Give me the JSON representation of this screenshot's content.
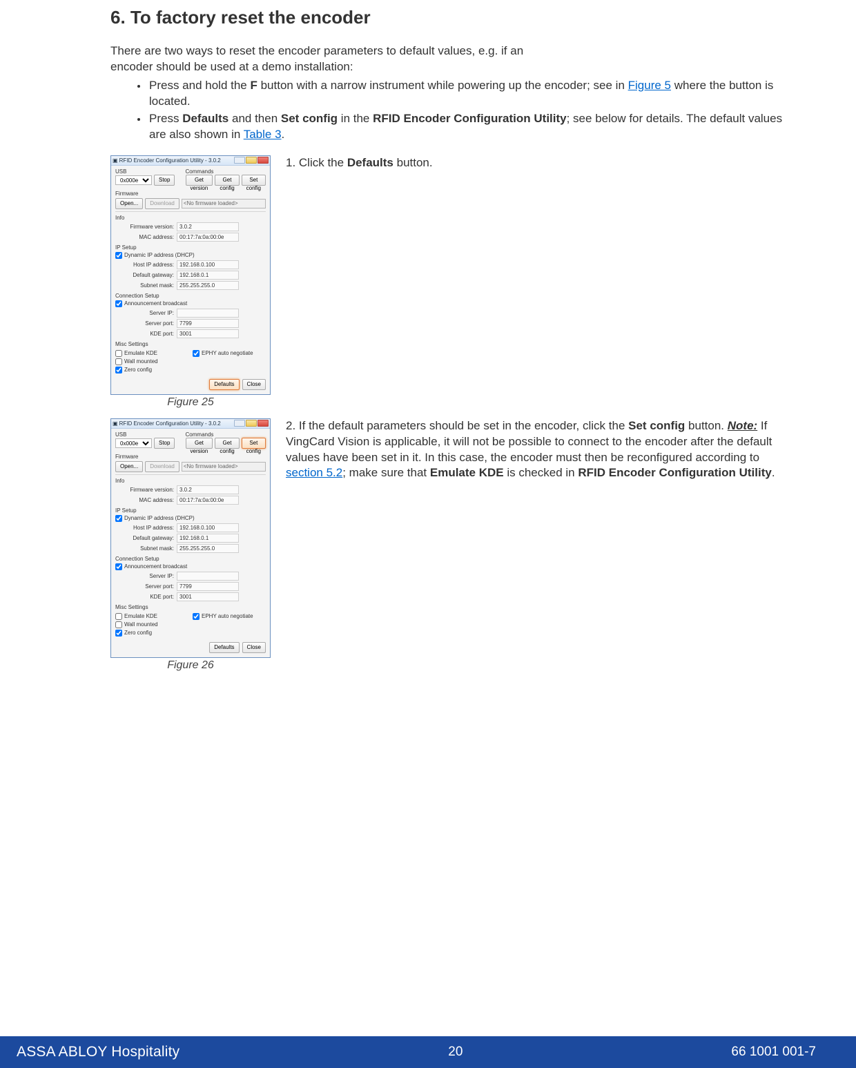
{
  "heading": "6. To factory reset the encoder",
  "intro_line1": "There are two ways to reset the encoder parameters to default values, e.g. if an",
  "intro_line2": "encoder should be used at a demo installation:",
  "bullet1_a": "Press and hold the ",
  "bullet1_b": "F",
  "bullet1_c": " button with a narrow instrument while powering up the encoder; see in ",
  "bullet1_link": "Figure 5",
  "bullet1_d": " where the button is located.",
  "bullet2_a": "Press ",
  "bullet2_b": "Defaults",
  "bullet2_c": " and then ",
  "bullet2_d": "Set config",
  "bullet2_e": " in the ",
  "bullet2_f": "RFID Encoder Configuration Utility",
  "bullet2_g": "; see below for details. The default values are also shown in ",
  "bullet2_link": "Table 3",
  "bullet2_h": ".",
  "step1_a": "1. Click the ",
  "step1_b": "Defaults",
  "step1_c": " button.",
  "step2_a": "2. If the default parameters should be set in the encoder, click the ",
  "step2_b": "Set config",
  "step2_c": " button. ",
  "step2_note": "Note:",
  "step2_d": " If VingCard Vision is applicable, it will not be possible to connect to the encoder after the default values have been set in it. In this case, the encoder must then be reconfigured according to ",
  "step2_link": "section 5.2",
  "step2_e": "; make sure that ",
  "step2_f": "Emulate KDE",
  "step2_g": " is checked in ",
  "step2_h": "RFID Encoder Configuration Utility",
  "step2_i": ".",
  "fig25_caption": "Figure 25",
  "fig26_caption": "Figure 26",
  "win": {
    "title": "RFID Encoder Configuration Utility - 3.0.2",
    "usb_label": "USB",
    "usb_selected": "0x000e",
    "stop_btn": "Stop",
    "commands_label": "Commands",
    "get_version_btn": "Get version",
    "get_config_btn": "Get config",
    "set_config_btn": "Set config",
    "firmware_label": "Firmware",
    "open_btn": "Open...",
    "download_btn": "Download",
    "no_fw": "<No firmware loaded>",
    "info_label": "Info",
    "fw_version_k": "Firmware version:",
    "fw_version_v": "3.0.2",
    "mac_k": "MAC address:",
    "mac_v": "00:17:7a:0a:00:0e",
    "ip_setup_label": "IP Setup",
    "dhcp_chk": "Dynamic IP address (DHCP)",
    "host_ip_k": "Host IP address:",
    "host_ip_v": "192.168.0.100",
    "gateway_k": "Default gateway:",
    "gateway_v": "192.168.0.1",
    "subnet_k": "Subnet mask:",
    "subnet_v": "255.255.255.0",
    "conn_setup_label": "Connection Setup",
    "ann_chk": "Announcement broadcast",
    "server_ip_k": "Server IP:",
    "server_ip_v": "",
    "server_port_k": "Server port:",
    "server_port_v": "7799",
    "kde_port_k": "KDE port:",
    "kde_port_v": "3001",
    "misc_label": "Misc Settings",
    "emulate_kde": "Emulate KDE",
    "wall_mounted": "Wall mounted",
    "zero_config": "Zero config",
    "ephy_auto": "EPHY auto negotiate",
    "defaults_btn": "Defaults",
    "close_btn": "Close"
  },
  "footer": {
    "brand": "ASSA ABLOY Hospitality",
    "page_no": "20",
    "doc_no": "66 1001 001-7"
  },
  "colors": {
    "link": "#0066cc",
    "footer_bg": "#1c4a9e"
  }
}
